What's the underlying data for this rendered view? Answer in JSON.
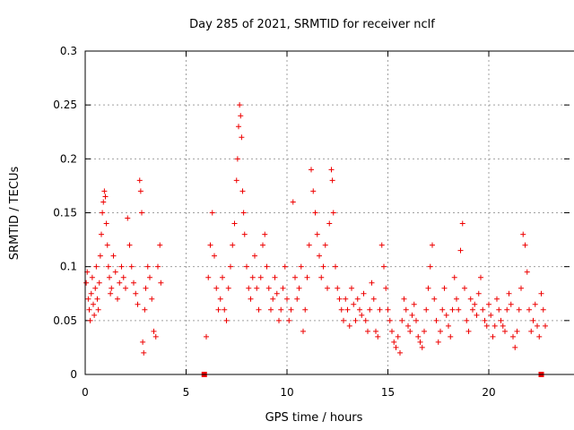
{
  "chart_data": {
    "type": "scatter",
    "title": "Day 285 of 2021, SRMTID for receiver nclf",
    "xlabel": "GPS time / hours",
    "ylabel": "SRMTID / TECUs",
    "xlim": [
      0,
      24
    ],
    "ylim": [
      0,
      0.3
    ],
    "xticks": [
      "0",
      "5",
      "10",
      "15",
      "20"
    ],
    "yticks": [
      "0",
      "0.05",
      "0.1",
      "0.15",
      "0.2",
      "0.25",
      "0.3"
    ],
    "grid": true,
    "legend": "none",
    "marker_color": "#ee0000",
    "gap_markers": [
      {
        "x": 5.9,
        "y": 0
      },
      {
        "x": 22.6,
        "y": 0
      }
    ],
    "series": [
      {
        "points": [
          [
            0.05,
            0.085
          ],
          [
            0.1,
            0.095
          ],
          [
            0.15,
            0.07
          ],
          [
            0.2,
            0.06
          ],
          [
            0.25,
            0.05
          ],
          [
            0.3,
            0.075
          ],
          [
            0.35,
            0.09
          ],
          [
            0.4,
            0.065
          ],
          [
            0.45,
            0.055
          ],
          [
            0.5,
            0.08
          ],
          [
            0.55,
            0.1
          ],
          [
            0.6,
            0.07
          ],
          [
            0.65,
            0.06
          ],
          [
            0.7,
            0.085
          ],
          [
            0.75,
            0.11
          ],
          [
            0.8,
            0.13
          ],
          [
            0.85,
            0.15
          ],
          [
            0.9,
            0.16
          ],
          [
            0.95,
            0.17
          ],
          [
            1.0,
            0.165
          ],
          [
            1.05,
            0.14
          ],
          [
            1.1,
            0.12
          ],
          [
            1.15,
            0.1
          ],
          [
            1.2,
            0.09
          ],
          [
            1.25,
            0.075
          ],
          [
            1.3,
            0.08
          ],
          [
            1.4,
            0.11
          ],
          [
            1.5,
            0.095
          ],
          [
            1.6,
            0.07
          ],
          [
            1.7,
            0.085
          ],
          [
            1.8,
            0.1
          ],
          [
            1.9,
            0.09
          ],
          [
            2.0,
            0.08
          ],
          [
            2.1,
            0.145
          ],
          [
            2.2,
            0.12
          ],
          [
            2.3,
            0.1
          ],
          [
            2.4,
            0.085
          ],
          [
            2.5,
            0.075
          ],
          [
            2.6,
            0.065
          ],
          [
            2.7,
            0.18
          ],
          [
            2.75,
            0.17
          ],
          [
            2.8,
            0.15
          ],
          [
            2.85,
            0.03
          ],
          [
            2.9,
            0.02
          ],
          [
            2.95,
            0.06
          ],
          [
            3.0,
            0.08
          ],
          [
            3.1,
            0.1
          ],
          [
            3.2,
            0.09
          ],
          [
            3.3,
            0.07
          ],
          [
            3.4,
            0.04
          ],
          [
            3.5,
            0.035
          ],
          [
            3.6,
            0.1
          ],
          [
            3.7,
            0.12
          ],
          [
            3.75,
            0.085
          ],
          [
            6.0,
            0.035
          ],
          [
            6.1,
            0.09
          ],
          [
            6.2,
            0.12
          ],
          [
            6.3,
            0.15
          ],
          [
            6.4,
            0.11
          ],
          [
            6.5,
            0.08
          ],
          [
            6.6,
            0.06
          ],
          [
            6.7,
            0.07
          ],
          [
            6.8,
            0.09
          ],
          [
            6.9,
            0.06
          ],
          [
            7.0,
            0.05
          ],
          [
            7.1,
            0.08
          ],
          [
            7.2,
            0.1
          ],
          [
            7.3,
            0.12
          ],
          [
            7.4,
            0.14
          ],
          [
            7.5,
            0.18
          ],
          [
            7.55,
            0.2
          ],
          [
            7.6,
            0.23
          ],
          [
            7.65,
            0.25
          ],
          [
            7.7,
            0.24
          ],
          [
            7.75,
            0.22
          ],
          [
            7.8,
            0.17
          ],
          [
            7.85,
            0.15
          ],
          [
            7.9,
            0.13
          ],
          [
            8.0,
            0.1
          ],
          [
            8.1,
            0.08
          ],
          [
            8.2,
            0.07
          ],
          [
            8.3,
            0.09
          ],
          [
            8.4,
            0.11
          ],
          [
            8.5,
            0.08
          ],
          [
            8.6,
            0.06
          ],
          [
            8.7,
            0.09
          ],
          [
            8.8,
            0.12
          ],
          [
            8.9,
            0.13
          ],
          [
            9.0,
            0.1
          ],
          [
            9.1,
            0.08
          ],
          [
            9.2,
            0.06
          ],
          [
            9.3,
            0.07
          ],
          [
            9.4,
            0.09
          ],
          [
            9.5,
            0.075
          ],
          [
            9.6,
            0.05
          ],
          [
            9.7,
            0.06
          ],
          [
            9.8,
            0.08
          ],
          [
            9.9,
            0.1
          ],
          [
            10.0,
            0.07
          ],
          [
            10.1,
            0.05
          ],
          [
            10.2,
            0.06
          ],
          [
            10.3,
            0.16
          ],
          [
            10.4,
            0.09
          ],
          [
            10.5,
            0.07
          ],
          [
            10.6,
            0.08
          ],
          [
            10.7,
            0.1
          ],
          [
            10.8,
            0.04
          ],
          [
            10.9,
            0.06
          ],
          [
            11.0,
            0.09
          ],
          [
            11.1,
            0.12
          ],
          [
            11.2,
            0.19
          ],
          [
            11.3,
            0.17
          ],
          [
            11.4,
            0.15
          ],
          [
            11.5,
            0.13
          ],
          [
            11.6,
            0.11
          ],
          [
            11.7,
            0.09
          ],
          [
            11.8,
            0.1
          ],
          [
            11.9,
            0.12
          ],
          [
            12.0,
            0.08
          ],
          [
            12.1,
            0.14
          ],
          [
            12.2,
            0.19
          ],
          [
            12.25,
            0.18
          ],
          [
            12.3,
            0.15
          ],
          [
            12.4,
            0.1
          ],
          [
            12.5,
            0.08
          ],
          [
            12.6,
            0.07
          ],
          [
            12.7,
            0.06
          ],
          [
            12.8,
            0.05
          ],
          [
            12.9,
            0.07
          ],
          [
            13.0,
            0.06
          ],
          [
            13.1,
            0.045
          ],
          [
            13.2,
            0.08
          ],
          [
            13.3,
            0.065
          ],
          [
            13.4,
            0.05
          ],
          [
            13.5,
            0.07
          ],
          [
            13.6,
            0.06
          ],
          [
            13.7,
            0.055
          ],
          [
            13.8,
            0.075
          ],
          [
            13.9,
            0.05
          ],
          [
            14.0,
            0.04
          ],
          [
            14.1,
            0.06
          ],
          [
            14.2,
            0.085
          ],
          [
            14.3,
            0.07
          ],
          [
            14.4,
            0.04
          ],
          [
            14.5,
            0.035
          ],
          [
            14.6,
            0.06
          ],
          [
            14.7,
            0.12
          ],
          [
            14.8,
            0.1
          ],
          [
            14.9,
            0.08
          ],
          [
            15.0,
            0.06
          ],
          [
            15.1,
            0.05
          ],
          [
            15.2,
            0.04
          ],
          [
            15.3,
            0.03
          ],
          [
            15.4,
            0.025
          ],
          [
            15.5,
            0.035
          ],
          [
            15.6,
            0.02
          ],
          [
            15.7,
            0.05
          ],
          [
            15.8,
            0.07
          ],
          [
            15.9,
            0.06
          ],
          [
            16.0,
            0.045
          ],
          [
            16.1,
            0.04
          ],
          [
            16.2,
            0.055
          ],
          [
            16.3,
            0.065
          ],
          [
            16.4,
            0.05
          ],
          [
            16.5,
            0.035
          ],
          [
            16.6,
            0.03
          ],
          [
            16.7,
            0.025
          ],
          [
            16.8,
            0.04
          ],
          [
            16.9,
            0.06
          ],
          [
            17.0,
            0.08
          ],
          [
            17.1,
            0.1
          ],
          [
            17.2,
            0.12
          ],
          [
            17.3,
            0.07
          ],
          [
            17.4,
            0.05
          ],
          [
            17.5,
            0.03
          ],
          [
            17.6,
            0.04
          ],
          [
            17.7,
            0.06
          ],
          [
            17.8,
            0.08
          ],
          [
            17.9,
            0.055
          ],
          [
            18.0,
            0.045
          ],
          [
            18.1,
            0.035
          ],
          [
            18.2,
            0.06
          ],
          [
            18.3,
            0.09
          ],
          [
            18.4,
            0.07
          ],
          [
            18.5,
            0.06
          ],
          [
            18.6,
            0.115
          ],
          [
            18.7,
            0.14
          ],
          [
            18.8,
            0.08
          ],
          [
            18.9,
            0.05
          ],
          [
            19.0,
            0.04
          ],
          [
            19.1,
            0.07
          ],
          [
            19.2,
            0.06
          ],
          [
            19.3,
            0.065
          ],
          [
            19.4,
            0.055
          ],
          [
            19.5,
            0.075
          ],
          [
            19.6,
            0.09
          ],
          [
            19.7,
            0.06
          ],
          [
            19.8,
            0.05
          ],
          [
            19.9,
            0.045
          ],
          [
            20.0,
            0.065
          ],
          [
            20.1,
            0.055
          ],
          [
            20.2,
            0.035
          ],
          [
            20.3,
            0.045
          ],
          [
            20.4,
            0.07
          ],
          [
            20.5,
            0.06
          ],
          [
            20.6,
            0.05
          ],
          [
            20.7,
            0.045
          ],
          [
            20.8,
            0.04
          ],
          [
            20.9,
            0.06
          ],
          [
            21.0,
            0.075
          ],
          [
            21.1,
            0.065
          ],
          [
            21.2,
            0.035
          ],
          [
            21.3,
            0.025
          ],
          [
            21.4,
            0.04
          ],
          [
            21.5,
            0.06
          ],
          [
            21.6,
            0.08
          ],
          [
            21.7,
            0.13
          ],
          [
            21.8,
            0.12
          ],
          [
            21.9,
            0.095
          ],
          [
            22.0,
            0.06
          ],
          [
            22.1,
            0.04
          ],
          [
            22.2,
            0.05
          ],
          [
            22.3,
            0.065
          ],
          [
            22.4,
            0.045
          ],
          [
            22.5,
            0.035
          ],
          [
            22.6,
            0.075
          ],
          [
            22.7,
            0.06
          ],
          [
            22.8,
            0.045
          ]
        ]
      }
    ]
  }
}
